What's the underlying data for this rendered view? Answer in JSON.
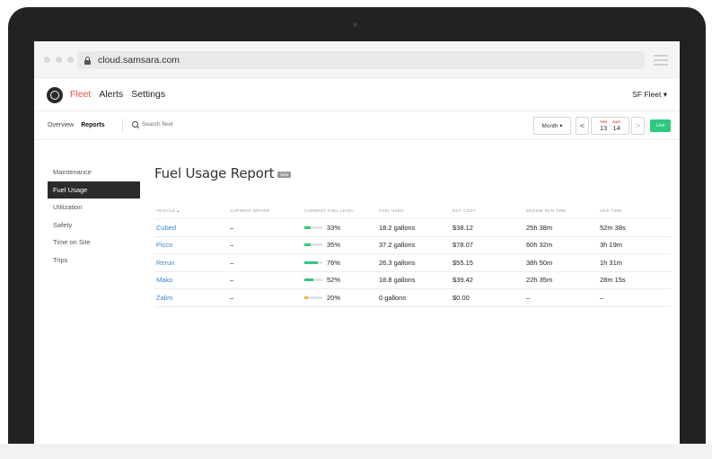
{
  "browser": {
    "url": "cloud.samsara.com"
  },
  "header": {
    "nav": [
      {
        "label": "Fleet",
        "active": true
      },
      {
        "label": "Alerts",
        "active": false
      },
      {
        "label": "Settings",
        "active": false
      }
    ],
    "fleet_selector": "SF Fleet ▾"
  },
  "subnav": {
    "overview": "Overview",
    "reports": "Reports",
    "search_placeholder": "Search fleet",
    "period": "Month ▾",
    "prev": "<",
    "next": ">",
    "start_month": "FEB",
    "start_day": "13",
    "end_month": "MAR",
    "end_day": "14",
    "range_sep": "-",
    "live": "Live"
  },
  "sidebar": {
    "items": [
      {
        "label": "Maintenance",
        "active": false
      },
      {
        "label": "Fuel Usage",
        "active": true
      },
      {
        "label": "Utilization",
        "active": false
      },
      {
        "label": "Safety",
        "active": false
      },
      {
        "label": "Time on Site",
        "active": false
      },
      {
        "label": "Trips",
        "active": false
      }
    ]
  },
  "report": {
    "title": "Fuel Usage Report",
    "badge": "beta",
    "columns": [
      "VEHICLE ▴",
      "CURRENT DRIVER",
      "CURRENT FUEL LEVEL",
      "FUEL USED",
      "EST. COST",
      "ENGINE RUN TIME",
      "IDLE TIME"
    ],
    "rows": [
      {
        "vehicle": "Cubed",
        "driver": "–",
        "fuel_level": "33%",
        "fuel_fraction": 0.33,
        "fuel_used": "18.2 gallons",
        "cost": "$38.12",
        "run_time": "25h 38m",
        "idle_time": "52m 38s"
      },
      {
        "vehicle": "Picco",
        "driver": "–",
        "fuel_level": "35%",
        "fuel_fraction": 0.35,
        "fuel_used": "37.2 gallons",
        "cost": "$78.07",
        "run_time": "60h 32m",
        "idle_time": "3h 19m"
      },
      {
        "vehicle": "Rerun",
        "driver": "–",
        "fuel_level": "76%",
        "fuel_fraction": 0.76,
        "fuel_used": "26.3 gallons",
        "cost": "$55.15",
        "run_time": "38h 50m",
        "idle_time": "1h 31m"
      },
      {
        "vehicle": "Mako",
        "driver": "–",
        "fuel_level": "52%",
        "fuel_fraction": 0.52,
        "fuel_used": "18.8 gallons",
        "cost": "$39.42",
        "run_time": "22h 35m",
        "idle_time": "28m 15s"
      },
      {
        "vehicle": "Zalim",
        "driver": "–",
        "fuel_level": "20%",
        "fuel_fraction": 0.2,
        "fuel_used": "0 gallons",
        "cost": "$0.00",
        "run_time": "–",
        "idle_time": "–"
      }
    ]
  },
  "colors": {
    "accent": "#e8523e",
    "link": "#3a86c8",
    "live": "#2ec980",
    "fuel_ok": "#2ec980",
    "fuel_low": "#f5b335"
  }
}
